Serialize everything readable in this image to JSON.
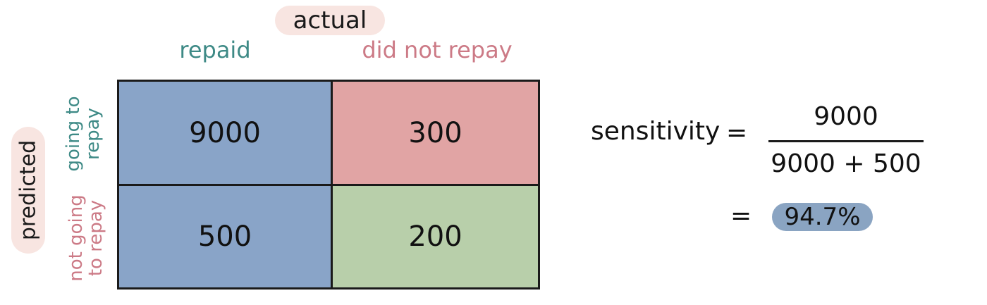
{
  "header": {
    "actual_label": "actual",
    "col_repaid": "repaid",
    "col_did_not_repay": "did not repay"
  },
  "side": {
    "predicted_label": "predicted",
    "row_going": [
      "going to",
      "repay"
    ],
    "row_not_going": [
      "not going",
      "to repay"
    ]
  },
  "matrix": {
    "tp": "9000",
    "fp": "300",
    "fn": "500",
    "tn": "200"
  },
  "formula": {
    "label": "sensitivity",
    "eq": "=",
    "numerator": "9000",
    "denominator": "9000 + 500",
    "result": "94.7%"
  },
  "colors": {
    "teal_text": "#3e8a86",
    "pink_text": "#cc7a86",
    "blue_cell": "#89a4c8",
    "red_cell": "#e1a4a4",
    "green_cell": "#b8cfaa",
    "label_pill": "#f8e5e1",
    "result_pill": "#8aa4c2"
  }
}
